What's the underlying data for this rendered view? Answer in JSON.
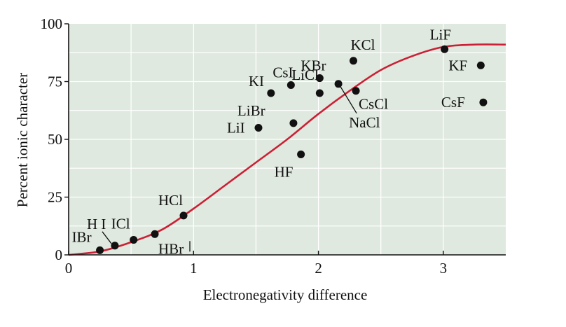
{
  "chart_data": {
    "type": "scatter",
    "xlabel": "Electronegativity difference",
    "ylabel": "Percent ionic character",
    "xlim": [
      0,
      3.5
    ],
    "ylim": [
      0,
      100
    ],
    "xticks": [
      0,
      1,
      2,
      3
    ],
    "yticks": [
      0,
      25,
      50,
      75,
      100
    ],
    "x_tick_labels": [
      "0",
      "1",
      "2",
      "3"
    ],
    "y_tick_labels": [
      "0",
      "25",
      "50",
      "75",
      "100"
    ],
    "grid": true,
    "background_color": "#dfe9df",
    "grid_color": "#ffffff",
    "curve_color": "#cc1f35",
    "point_color": "#111111",
    "curve": {
      "label": "",
      "x": [
        0,
        0.25,
        0.5,
        0.75,
        1.0,
        1.25,
        1.5,
        1.75,
        2.0,
        2.25,
        2.5,
        2.75,
        3.0,
        3.25,
        3.5
      ],
      "y": [
        0,
        1.5,
        5.5,
        11,
        20,
        30,
        40,
        50,
        61,
        71,
        80,
        86,
        90,
        91,
        91
      ]
    },
    "points": [
      {
        "label": "IBr",
        "x": 0.25,
        "y": 2
      },
      {
        "label": "H I",
        "x": 0.37,
        "y": 4
      },
      {
        "label": "ICl",
        "x": 0.52,
        "y": 6.5
      },
      {
        "label": "HBr",
        "x": 0.69,
        "y": 9
      },
      {
        "label": "HCl",
        "x": 0.92,
        "y": 17
      },
      {
        "label": "LiI",
        "x": 1.52,
        "y": 55
      },
      {
        "label": "KI",
        "x": 1.62,
        "y": 70
      },
      {
        "label": "LiBr",
        "x": 1.8,
        "y": 57
      },
      {
        "label": "CsI",
        "x": 1.78,
        "y": 73.5
      },
      {
        "label": "HF",
        "x": 1.86,
        "y": 43.5
      },
      {
        "label": "LiCl",
        "x": 2.01,
        "y": 70
      },
      {
        "label": "KBr",
        "x": 2.01,
        "y": 76.5
      },
      {
        "label": "NaCl",
        "x": 2.16,
        "y": 74
      },
      {
        "label": "KCl",
        "x": 2.28,
        "y": 84
      },
      {
        "label": "CsCl",
        "x": 2.3,
        "y": 71
      },
      {
        "label": "LiF",
        "x": 3.01,
        "y": 89
      },
      {
        "label": "KF",
        "x": 3.3,
        "y": 82
      },
      {
        "label": "CsF",
        "x": 3.32,
        "y": 66
      }
    ]
  }
}
